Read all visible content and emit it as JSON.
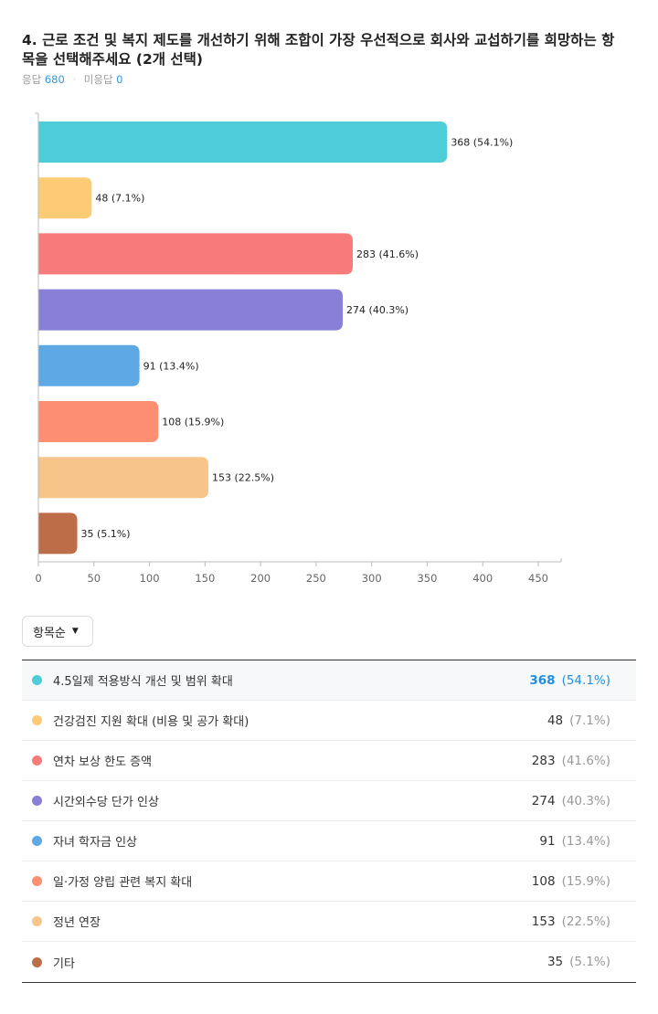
{
  "question": {
    "title": "4. 근로 조건 및 복지 제도를 개선하기 위해 조합이 가장 우선적으로 회사와 교섭하기를 희망하는 항목을 선택해주세요 (2개 선택)",
    "answered_label": "응답",
    "answered_count": "680",
    "unanswered_label": "미응답",
    "unanswered_count": "0"
  },
  "sort": {
    "label": "항목순",
    "icon": "caret-down-icon"
  },
  "colors": {
    "accent": "#1f90e0"
  },
  "chart_data": {
    "type": "bar",
    "orientation": "horizontal",
    "categories": [
      "4.5일제 적용방식 개선 및 범위 확대",
      "건강검진 지원 확대 (비용 및 공가 확대)",
      "연차 보상 한도 증액",
      "시간외수당 단가 인상",
      "자녀 학자금 인상",
      "일·가정 양립 관련 복지 확대",
      "정년 연장",
      "기타"
    ],
    "values": [
      368,
      48,
      283,
      274,
      91,
      108,
      153,
      35
    ],
    "percents": [
      "54.1%",
      "7.1%",
      "41.6%",
      "40.3%",
      "13.4%",
      "15.9%",
      "22.5%",
      "5.1%"
    ],
    "data_labels": [
      "368 (54.1%)",
      "48 (7.1%)",
      "283 (41.6%)",
      "274 (40.3%)",
      "91 (13.4%)",
      "108 (15.9%)",
      "153 (22.5%)",
      "35 (5.1%)"
    ],
    "colors": [
      "#4ecdd9",
      "#fdcb76",
      "#f77b7b",
      "#8880d6",
      "#5ea8e6",
      "#fc8f72",
      "#f7c58a",
      "#bd6d48"
    ],
    "xlim": [
      0,
      450
    ],
    "xticks": [
      0,
      50,
      100,
      150,
      200,
      250,
      300,
      350,
      400,
      450
    ],
    "grid": false,
    "legend": "none"
  },
  "table": {
    "rows": [
      {
        "label": "4.5일제 적용방식 개선 및 범위 확대",
        "count": "368",
        "pct": "(54.1%)"
      },
      {
        "label": "건강검진 지원 확대 (비용 및 공가 확대)",
        "count": "48",
        "pct": "(7.1%)"
      },
      {
        "label": "연차 보상 한도 증액",
        "count": "283",
        "pct": "(41.6%)"
      },
      {
        "label": "시간외수당 단가 인상",
        "count": "274",
        "pct": "(40.3%)"
      },
      {
        "label": "자녀 학자금 인상",
        "count": "91",
        "pct": "(13.4%)"
      },
      {
        "label": "일·가정 양립 관련 복지 확대",
        "count": "108",
        "pct": "(15.9%)"
      },
      {
        "label": "정년 연장",
        "count": "153",
        "pct": "(22.5%)"
      },
      {
        "label": "기타",
        "count": "35",
        "pct": "(5.1%)"
      }
    ]
  }
}
